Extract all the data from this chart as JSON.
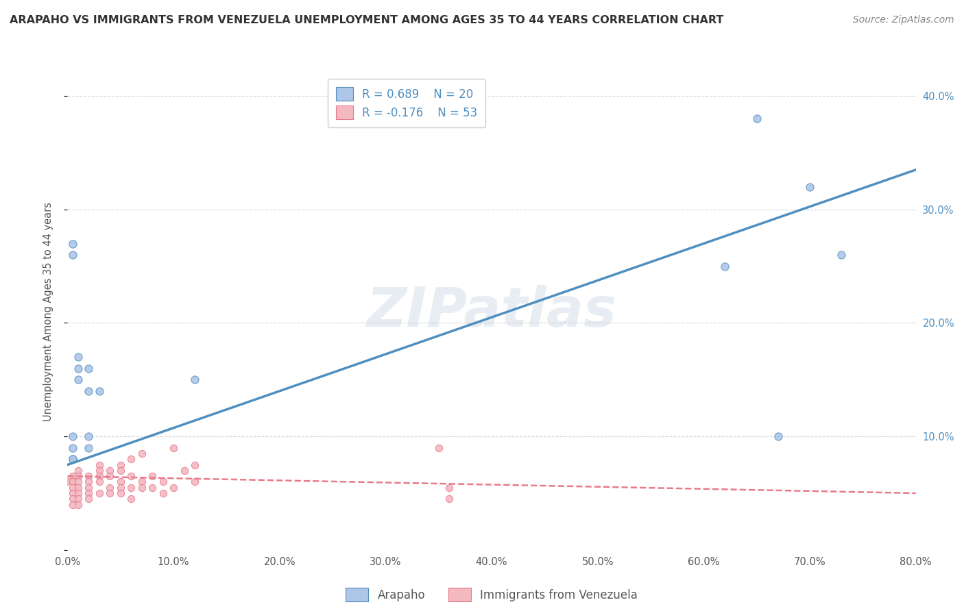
{
  "title": "ARAPAHO VS IMMIGRANTS FROM VENEZUELA UNEMPLOYMENT AMONG AGES 35 TO 44 YEARS CORRELATION CHART",
  "source": "Source: ZipAtlas.com",
  "ylabel": "Unemployment Among Ages 35 to 44 years",
  "xlim": [
    0,
    0.8
  ],
  "ylim": [
    0,
    0.42
  ],
  "xticks": [
    0.0,
    0.1,
    0.2,
    0.3,
    0.4,
    0.5,
    0.6,
    0.7,
    0.8
  ],
  "yticks": [
    0.0,
    0.1,
    0.2,
    0.3,
    0.4
  ],
  "xtick_labels": [
    "0.0%",
    "10.0%",
    "20.0%",
    "30.0%",
    "40.0%",
    "50.0%",
    "60.0%",
    "70.0%",
    "80.0%"
  ],
  "ytick_labels_right": [
    "",
    "10.0%",
    "20.0%",
    "30.0%",
    "40.0%"
  ],
  "background_color": "#ffffff",
  "watermark": "ZIPatlas",
  "legend_labels": [
    "Arapaho",
    "Immigrants from Venezuela"
  ],
  "legend_R": [
    "R = 0.689",
    "R = -0.176"
  ],
  "legend_N": [
    "N = 20",
    "N = 53"
  ],
  "arapaho_color": "#aec6e8",
  "venezuela_color": "#f4b8c1",
  "arapaho_line_color": "#4f8fc0",
  "venezuela_line_color": "#e87a8a",
  "arapaho_scatter_x": [
    0.005,
    0.005,
    0.005,
    0.005,
    0.005,
    0.005,
    0.01,
    0.01,
    0.01,
    0.02,
    0.02,
    0.02,
    0.02,
    0.03,
    0.12,
    0.65,
    0.7,
    0.73,
    0.62,
    0.67
  ],
  "arapaho_scatter_y": [
    0.27,
    0.26,
    0.1,
    0.09,
    0.08,
    0.08,
    0.17,
    0.16,
    0.15,
    0.16,
    0.14,
    0.1,
    0.09,
    0.14,
    0.15,
    0.38,
    0.32,
    0.26,
    0.25,
    0.1
  ],
  "venezuela_scatter_x": [
    0.0,
    0.005,
    0.005,
    0.005,
    0.005,
    0.005,
    0.005,
    0.005,
    0.01,
    0.01,
    0.01,
    0.01,
    0.01,
    0.01,
    0.01,
    0.02,
    0.02,
    0.02,
    0.02,
    0.02,
    0.03,
    0.03,
    0.03,
    0.03,
    0.03,
    0.04,
    0.04,
    0.04,
    0.04,
    0.05,
    0.05,
    0.05,
    0.05,
    0.05,
    0.06,
    0.06,
    0.06,
    0.06,
    0.07,
    0.07,
    0.07,
    0.08,
    0.08,
    0.09,
    0.09,
    0.1,
    0.1,
    0.11,
    0.12,
    0.12,
    0.35,
    0.36,
    0.36
  ],
  "venezuela_scatter_y": [
    0.06,
    0.065,
    0.06,
    0.06,
    0.055,
    0.05,
    0.045,
    0.04,
    0.07,
    0.065,
    0.06,
    0.055,
    0.05,
    0.045,
    0.04,
    0.065,
    0.06,
    0.055,
    0.05,
    0.045,
    0.075,
    0.07,
    0.065,
    0.06,
    0.05,
    0.07,
    0.065,
    0.055,
    0.05,
    0.075,
    0.07,
    0.06,
    0.055,
    0.05,
    0.08,
    0.065,
    0.055,
    0.045,
    0.085,
    0.06,
    0.055,
    0.065,
    0.055,
    0.06,
    0.05,
    0.09,
    0.055,
    0.07,
    0.075,
    0.06,
    0.09,
    0.055,
    0.045
  ],
  "arapaho_line_x": [
    0.0,
    0.8
  ],
  "arapaho_line_y": [
    0.075,
    0.335
  ],
  "venezuela_line_x": [
    0.0,
    0.8
  ],
  "venezuela_line_y": [
    0.065,
    0.05
  ]
}
